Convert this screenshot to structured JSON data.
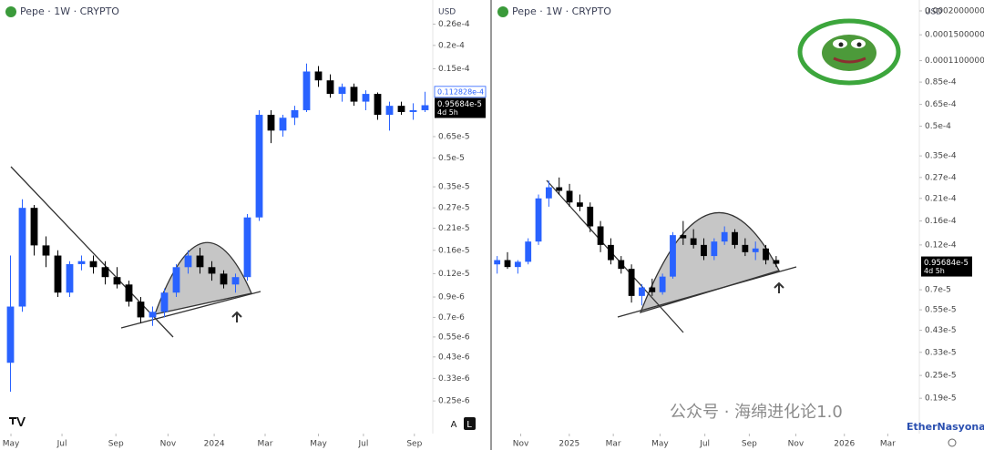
{
  "chart_data": [
    {
      "type": "candlestick",
      "title": "Pepe · 1W · CRYPTO",
      "currency": "USD",
      "log_scale": true,
      "grid": false,
      "up_color": "#2962ff",
      "down_color": "#000000",
      "open": [
        4e-07,
        8e-07,
        2.7e-06,
        1.7e-06,
        1.5e-06,
        9.5e-07,
        1.35e-06,
        1.4e-06,
        1.3e-06,
        1.15e-06,
        1.05e-06,
        8.5e-07,
        7e-07,
        7.5e-07,
        9.5e-07,
        1.3e-06,
        1.5e-06,
        1.3e-06,
        1.2e-06,
        1.05e-06,
        1.15e-06,
        2.4e-06,
        8.5e-06,
        7e-06,
        8.2e-06,
        9e-06,
        1.45e-05,
        1.3e-05,
        1.1e-05,
        1.2e-05,
        1e-05,
        1.1e-05,
        8.5e-06,
        9.5e-06,
        8.8e-06,
        9e-06
      ],
      "high": [
        1.5e-06,
        3e-06,
        2.8e-06,
        1.9e-06,
        1.6e-06,
        1.4e-06,
        1.5e-06,
        1.5e-06,
        1.4e-06,
        1.3e-06,
        1.1e-06,
        9e-07,
        8e-07,
        1e-06,
        1.35e-06,
        1.6e-06,
        1.65e-06,
        1.4e-06,
        1.25e-06,
        1.2e-06,
        2.5e-06,
        9e-06,
        9e-06,
        8.5e-06,
        9.5e-06,
        1.6e-05,
        1.55e-05,
        1.4e-05,
        1.25e-05,
        1.25e-05,
        1.15e-05,
        1.12e-05,
        1e-05,
        1e-05,
        9.8e-06,
        1.13e-05
      ],
      "low": [
        2.8e-07,
        7.5e-07,
        1.5e-06,
        1.3e-06,
        9e-07,
        9e-07,
        1.25e-06,
        1.2e-06,
        1.05e-06,
        1e-06,
        8e-07,
        6.5e-07,
        6.3e-07,
        7e-07,
        9e-07,
        1.2e-06,
        1.2e-06,
        1.1e-06,
        1e-06,
        9.5e-07,
        1.1e-06,
        2.3e-06,
        6e-06,
        6.5e-06,
        7.5e-06,
        8.8e-06,
        1.2e-05,
        1.05e-05,
        1e-05,
        9.5e-06,
        9e-06,
        8e-06,
        7e-06,
        8.5e-06,
        8e-06,
        8.8e-06
      ],
      "close": [
        8e-07,
        2.7e-06,
        1.7e-06,
        1.5e-06,
        9.5e-07,
        1.35e-06,
        1.4e-06,
        1.3e-06,
        1.15e-06,
        1.05e-06,
        8.5e-07,
        7e-07,
        7.5e-07,
        9.5e-07,
        1.3e-06,
        1.5e-06,
        1.3e-06,
        1.2e-06,
        1.05e-06,
        1.15e-06,
        2.4e-06,
        8.5e-06,
        7e-06,
        8.2e-06,
        9e-06,
        1.45e-05,
        1.3e-05,
        1.1e-05,
        1.2e-05,
        1e-05,
        1.1e-05,
        8.5e-06,
        9.5e-06,
        8.8e-06,
        9e-06,
        9.5684e-06
      ],
      "xlim": [
        -0.5,
        35.5
      ],
      "xticks": [
        {
          "value": 0.04,
          "label": "May"
        },
        {
          "value": 4.35,
          "label": "Jul"
        },
        {
          "value": 8.9,
          "label": "Sep"
        },
        {
          "value": 13.3,
          "label": "Nov"
        },
        {
          "value": 17.2,
          "label": "2024"
        },
        {
          "value": 21.5,
          "label": "Mar"
        },
        {
          "value": 26,
          "label": "May"
        },
        {
          "value": 29.8,
          "label": "Jul"
        },
        {
          "value": 34.1,
          "label": "Sep"
        }
      ],
      "ylim": [
        2e-07,
        3.5e-05
      ],
      "yticks": [
        {
          "value": 2.6e-05,
          "label": "0.26e-4"
        },
        {
          "value": 2e-05,
          "label": "0.2e-4"
        },
        {
          "value": 1.5e-05,
          "label": "0.15e-4"
        },
        {
          "value": 6.5e-06,
          "label": "0.65e-5"
        },
        {
          "value": 5e-06,
          "label": "0.5e-5"
        },
        {
          "value": 3.5e-06,
          "label": "0.35e-5"
        },
        {
          "value": 2.7e-06,
          "label": "0.27e-5"
        },
        {
          "value": 2.1e-06,
          "label": "0.21e-5"
        },
        {
          "value": 1.6e-06,
          "label": "0.16e-5"
        },
        {
          "value": 1.2e-06,
          "label": "0.12e-5"
        },
        {
          "value": 9e-07,
          "label": "0.9e-6"
        },
        {
          "value": 7e-07,
          "label": "0.7e-6"
        },
        {
          "value": 5.5e-07,
          "label": "0.55e-6"
        },
        {
          "value": 4.3e-07,
          "label": "0.43e-6"
        },
        {
          "value": 3.3e-07,
          "label": "0.33e-6"
        },
        {
          "value": 2.5e-07,
          "label": "0.25e-6"
        }
      ],
      "marker_price": {
        "value": 1.12828e-05,
        "label": "0.112828e-4"
      },
      "last_price": {
        "value": 9.5684e-06,
        "label": "0.95684e-5",
        "countdown": "4d 5h"
      },
      "scale_buttons": [
        "A",
        "L"
      ]
    },
    {
      "type": "candlestick",
      "title": "Pepe · 1W · CRYPTO",
      "currency": "USD",
      "log_scale": true,
      "grid": false,
      "up_color": "#2962ff",
      "down_color": "#000000",
      "open": [
        9.5e-06,
        1e-05,
        9.2e-06,
        9.8e-06,
        1.25e-05,
        2.1e-05,
        2.4e-05,
        2.3e-05,
        2e-05,
        1.9e-05,
        1.5e-05,
        1.2e-05,
        1e-05,
        9e-06,
        6.5e-06,
        7.2e-06,
        6.8e-06,
        8.2e-06,
        1.35e-05,
        1.3e-05,
        1.2e-05,
        1.05e-05,
        1.25e-05,
        1.4e-05,
        1.2e-05,
        1.1e-05,
        1.15e-05,
        1e-05
      ],
      "high": [
        1.05e-05,
        1.1e-05,
        1e-05,
        1.3e-05,
        2.2e-05,
        2.6e-05,
        2.7e-05,
        2.5e-05,
        2.2e-05,
        2e-05,
        1.6e-05,
        1.3e-05,
        1.05e-05,
        9.5e-06,
        7.5e-06,
        8e-06,
        8.5e-06,
        1.4e-05,
        1.6e-05,
        1.45e-05,
        1.3e-05,
        1.3e-05,
        1.5e-05,
        1.45e-05,
        1.3e-05,
        1.25e-05,
        1.2e-05,
        1.05e-05
      ],
      "low": [
        8.5e-06,
        9e-06,
        8.5e-06,
        9.5e-06,
        1.2e-05,
        1.9e-05,
        2.2e-05,
        1.9e-05,
        1.8e-05,
        1.4e-05,
        1.1e-05,
        9.5e-06,
        8.5e-06,
        6e-06,
        5.8e-06,
        6.5e-06,
        6.6e-06,
        8e-06,
        1.2e-05,
        1.15e-05,
        1e-05,
        1e-05,
        1.2e-05,
        1.15e-05,
        1.05e-05,
        1e-05,
        9.5e-06,
        9.2e-06
      ],
      "close": [
        1e-05,
        9.2e-06,
        9.8e-06,
        1.25e-05,
        2.1e-05,
        2.4e-05,
        2.3e-05,
        2e-05,
        1.9e-05,
        1.5e-05,
        1.2e-05,
        1e-05,
        9e-06,
        6.5e-06,
        7.2e-06,
        6.8e-06,
        8.2e-06,
        1.35e-05,
        1.3e-05,
        1.2e-05,
        1.05e-05,
        1.25e-05,
        1.4e-05,
        1.2e-05,
        1.1e-05,
        1.15e-05,
        1e-05,
        9.5684e-06
      ],
      "xlim": [
        -0.5,
        40.5
      ],
      "xticks": [
        {
          "value": 2.28,
          "label": "Nov"
        },
        {
          "value": 6.98,
          "label": "2025"
        },
        {
          "value": 11.24,
          "label": "Mar"
        },
        {
          "value": 15.76,
          "label": "May"
        },
        {
          "value": 20.1,
          "label": "Jul"
        },
        {
          "value": 24.4,
          "label": "Sep"
        },
        {
          "value": 28.9,
          "label": "Nov"
        },
        {
          "value": 33.6,
          "label": "2026"
        },
        {
          "value": 37.8,
          "label": "Mar"
        }
      ],
      "ylim": [
        1.48e-06,
        0.000228
      ],
      "yticks": [
        {
          "value": 0.0002,
          "label": "0.0002000000"
        },
        {
          "value": 0.00015,
          "label": "0.0001500000"
        },
        {
          "value": 0.00011,
          "label": "0.0001100000"
        },
        {
          "value": 8.5e-05,
          "label": "0.85e-4"
        },
        {
          "value": 6.5e-05,
          "label": "0.65e-4"
        },
        {
          "value": 5e-05,
          "label": "0.5e-4"
        },
        {
          "value": 3.5e-05,
          "label": "0.35e-4"
        },
        {
          "value": 2.7e-05,
          "label": "0.27e-4"
        },
        {
          "value": 2.1e-05,
          "label": "0.21e-4"
        },
        {
          "value": 1.6e-05,
          "label": "0.16e-4"
        },
        {
          "value": 1.2e-05,
          "label": "0.12e-4"
        },
        {
          "value": 7e-06,
          "label": "0.7e-5"
        },
        {
          "value": 5.5e-06,
          "label": "0.55e-5"
        },
        {
          "value": 4.3e-06,
          "label": "0.43e-5"
        },
        {
          "value": 3.3e-06,
          "label": "0.33e-5"
        },
        {
          "value": 2.5e-06,
          "label": "0.25e-5"
        },
        {
          "value": 1.9e-06,
          "label": "0.19e-5"
        }
      ],
      "last_price": {
        "value": 9.5684e-06,
        "label": "0.95684e-5",
        "countdown": "4d 5h"
      }
    }
  ],
  "watermark": {
    "text": "公众号 · 海绵进化论1.0",
    "credit": "EtherNasyonaL"
  }
}
